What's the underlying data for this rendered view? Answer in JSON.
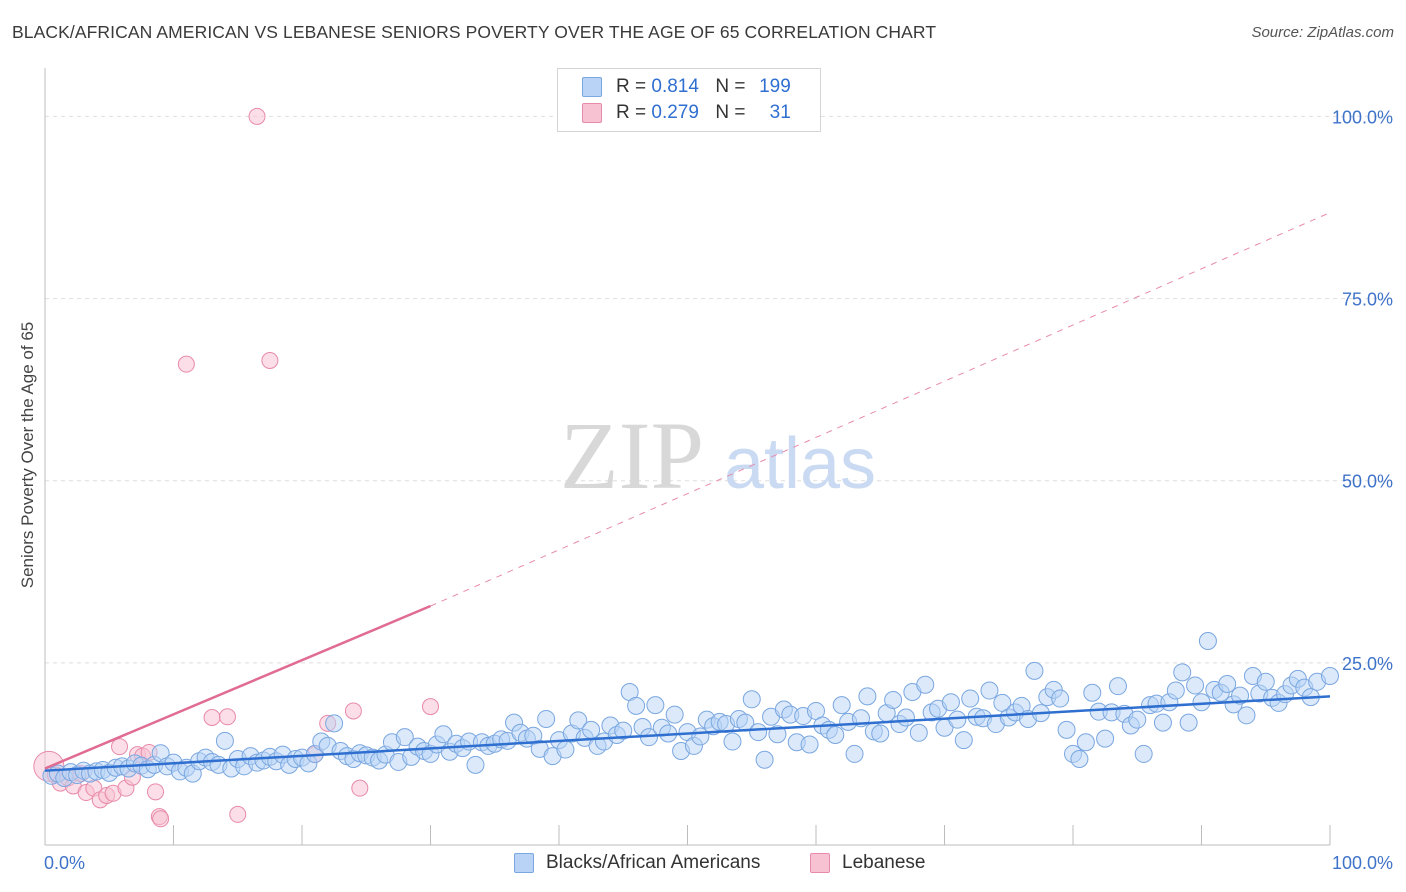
{
  "title": "BLACK/AFRICAN AMERICAN VS LEBANESE SENIORS POVERTY OVER THE AGE OF 65 CORRELATION CHART",
  "source": "Source: ZipAtlas.com",
  "watermark": {
    "zip": "ZIP",
    "atlas": "atlas"
  },
  "legend": {
    "r_label": "R =",
    "n_label": "N =",
    "rows": [
      {
        "r": "0.814",
        "n": "199",
        "color": "#b8d3f5"
      },
      {
        "r": "0.279",
        "n": "31",
        "color": "#f7c3d3"
      }
    ]
  },
  "bottom_legend": {
    "series1": "Blacks/African Americans",
    "series2": "Lebanese"
  },
  "chart_data": {
    "type": "scatter",
    "title": "BLACK/AFRICAN AMERICAN VS LEBANESE SENIORS POVERTY OVER THE AGE OF 65 CORRELATION CHART",
    "xlabel": "",
    "ylabel": "Seniors Poverty Over the Age of 65",
    "xlim": [
      0,
      100
    ],
    "ylim": [
      0,
      105
    ],
    "x_tick_labels": [
      "0.0%",
      "100.0%"
    ],
    "y_ticks": [
      25,
      50,
      75,
      100
    ],
    "y_tick_labels": [
      "25.0%",
      "50.0%",
      "75.0%",
      "100.0%"
    ],
    "series": [
      {
        "name": "Blacks/African Americans",
        "color": "#7aa7e0",
        "fill": "#b8d3f5",
        "trend": {
          "x": [
            0,
            100
          ],
          "y": [
            10.2,
            20.4
          ]
        },
        "points": [
          [
            0.5,
            9.5
          ],
          [
            1,
            9.8
          ],
          [
            1.5,
            9.2
          ],
          [
            2,
            10
          ],
          [
            2.5,
            9.6
          ],
          [
            3,
            10.2
          ],
          [
            3.5,
            9.8
          ],
          [
            4,
            10.1
          ],
          [
            4.5,
            10.3
          ],
          [
            5,
            9.9
          ],
          [
            5.5,
            10.6
          ],
          [
            6,
            10.8
          ],
          [
            6.5,
            10.5
          ],
          [
            7,
            11.2
          ],
          [
            7.5,
            10.9
          ],
          [
            8,
            10.4
          ],
          [
            8.5,
            11
          ],
          [
            9,
            12.6
          ],
          [
            9.5,
            10.8
          ],
          [
            10,
            11.3
          ],
          [
            10.5,
            10.1
          ],
          [
            11,
            10.6
          ],
          [
            11.5,
            9.8
          ],
          [
            12,
            11.5
          ],
          [
            12.5,
            12
          ],
          [
            13,
            11.4
          ],
          [
            13.5,
            11
          ],
          [
            14,
            14.3
          ],
          [
            14.5,
            10.5
          ],
          [
            15,
            11.8
          ],
          [
            15.5,
            10.8
          ],
          [
            16,
            12.2
          ],
          [
            16.5,
            11.3
          ],
          [
            17,
            11.6
          ],
          [
            17.5,
            12.1
          ],
          [
            18,
            11.5
          ],
          [
            18.5,
            12.4
          ],
          [
            19,
            11
          ],
          [
            19.5,
            11.8
          ],
          [
            20,
            12
          ],
          [
            20.5,
            11.2
          ],
          [
            21,
            12.5
          ],
          [
            21.5,
            14.2
          ],
          [
            22,
            13.6
          ],
          [
            22.5,
            16.7
          ],
          [
            23,
            12.9
          ],
          [
            23.5,
            12.2
          ],
          [
            24,
            11.8
          ],
          [
            24.5,
            12.6
          ],
          [
            25,
            12.3
          ],
          [
            25.5,
            12
          ],
          [
            26,
            11.6
          ],
          [
            26.5,
            12.4
          ],
          [
            27,
            14.1
          ],
          [
            27.5,
            11.4
          ],
          [
            28,
            14.8
          ],
          [
            28.5,
            12.1
          ],
          [
            29,
            13.5
          ],
          [
            29.5,
            12.9
          ],
          [
            30,
            12.5
          ],
          [
            30.5,
            13.8
          ],
          [
            31,
            15.2
          ],
          [
            31.5,
            12.8
          ],
          [
            32,
            13.9
          ],
          [
            32.5,
            13.3
          ],
          [
            33,
            14.2
          ],
          [
            33.5,
            11
          ],
          [
            34,
            14.1
          ],
          [
            34.5,
            13.6
          ],
          [
            35,
            13.9
          ],
          [
            35.5,
            14.5
          ],
          [
            36,
            14.3
          ],
          [
            36.5,
            16.8
          ],
          [
            37,
            15.4
          ],
          [
            37.5,
            14.6
          ],
          [
            38,
            15
          ],
          [
            38.5,
            13.2
          ],
          [
            39,
            17.3
          ],
          [
            39.5,
            12.2
          ],
          [
            40,
            14.4
          ],
          [
            40.5,
            13.1
          ],
          [
            41,
            15.3
          ],
          [
            41.5,
            17.1
          ],
          [
            42,
            14.7
          ],
          [
            42.5,
            15.8
          ],
          [
            43,
            13.6
          ],
          [
            43.5,
            14.2
          ],
          [
            44,
            16.4
          ],
          [
            44.5,
            15.1
          ],
          [
            45,
            15.7
          ],
          [
            45.5,
            21
          ],
          [
            46,
            19.1
          ],
          [
            46.5,
            16.2
          ],
          [
            47,
            14.8
          ],
          [
            47.5,
            19.2
          ],
          [
            48,
            16.1
          ],
          [
            48.5,
            15.3
          ],
          [
            49,
            17.9
          ],
          [
            49.5,
            12.9
          ],
          [
            50,
            15.5
          ],
          [
            50.5,
            13.6
          ],
          [
            51,
            14.9
          ],
          [
            51.5,
            17.2
          ],
          [
            52,
            16.3
          ],
          [
            52.5,
            16.9
          ],
          [
            53,
            16.6
          ],
          [
            53.5,
            14.2
          ],
          [
            54,
            17.3
          ],
          [
            54.5,
            16.8
          ],
          [
            55,
            20
          ],
          [
            55.5,
            15.5
          ],
          [
            56,
            11.7
          ],
          [
            56.5,
            17.6
          ],
          [
            57,
            15.2
          ],
          [
            57.5,
            18.6
          ],
          [
            58,
            17.9
          ],
          [
            58.5,
            14.1
          ],
          [
            59,
            17.7
          ],
          [
            59.5,
            13.8
          ],
          [
            60,
            18.4
          ],
          [
            60.5,
            16.4
          ],
          [
            61,
            15.8
          ],
          [
            61.5,
            15.1
          ],
          [
            62,
            19.2
          ],
          [
            62.5,
            16.9
          ],
          [
            63,
            12.5
          ],
          [
            63.5,
            17.4
          ],
          [
            64,
            20.4
          ],
          [
            64.5,
            15.6
          ],
          [
            65,
            15.3
          ],
          [
            65.5,
            18.1
          ],
          [
            66,
            19.9
          ],
          [
            66.5,
            16.6
          ],
          [
            67,
            17.5
          ],
          [
            67.5,
            21
          ],
          [
            68,
            15.4
          ],
          [
            68.5,
            22
          ],
          [
            69,
            18.2
          ],
          [
            69.5,
            18.7
          ],
          [
            70,
            16.1
          ],
          [
            70.5,
            19.6
          ],
          [
            71,
            17.2
          ],
          [
            71.5,
            14.4
          ],
          [
            72,
            20.1
          ],
          [
            72.5,
            17.6
          ],
          [
            73,
            17.4
          ],
          [
            73.5,
            21.2
          ],
          [
            74,
            16.6
          ],
          [
            74.5,
            19.5
          ],
          [
            75,
            17.5
          ],
          [
            75.5,
            18.2
          ],
          [
            76,
            19.1
          ],
          [
            76.5,
            17.3
          ],
          [
            77,
            23.9
          ],
          [
            77.5,
            18.1
          ],
          [
            78,
            20.3
          ],
          [
            78.5,
            21.3
          ],
          [
            79,
            20.1
          ],
          [
            79.5,
            15.8
          ],
          [
            80,
            12.5
          ],
          [
            80.5,
            11.8
          ],
          [
            81,
            14.1
          ],
          [
            81.5,
            20.9
          ],
          [
            82,
            18.3
          ],
          [
            82.5,
            14.6
          ],
          [
            83,
            18.2
          ],
          [
            83.5,
            21.8
          ],
          [
            84,
            18
          ],
          [
            84.5,
            16.4
          ],
          [
            85,
            17.2
          ],
          [
            85.5,
            12.5
          ],
          [
            86,
            19.2
          ],
          [
            86.5,
            19.4
          ],
          [
            87,
            16.8
          ],
          [
            87.5,
            19.6
          ],
          [
            88,
            21.2
          ],
          [
            88.5,
            23.7
          ],
          [
            89,
            16.8
          ],
          [
            89.5,
            21.9
          ],
          [
            90,
            19.6
          ],
          [
            90.5,
            28
          ],
          [
            91,
            21.3
          ],
          [
            91.5,
            20.9
          ],
          [
            92,
            22.1
          ],
          [
            92.5,
            19.3
          ],
          [
            93,
            20.5
          ],
          [
            93.5,
            17.8
          ],
          [
            94,
            23.2
          ],
          [
            94.5,
            20.8
          ],
          [
            95,
            22.4
          ],
          [
            95.5,
            20.2
          ],
          [
            96,
            19.5
          ],
          [
            96.5,
            20.7
          ],
          [
            97,
            21.9
          ],
          [
            97.5,
            22.8
          ],
          [
            98,
            21.6
          ],
          [
            98.5,
            20.3
          ],
          [
            99,
            22.4
          ],
          [
            100,
            23.2
          ]
        ]
      },
      {
        "name": "Lebanese",
        "color": "#e88aa9",
        "fill": "#f7c3d3",
        "trend": {
          "x": [
            0,
            30
          ],
          "y": [
            10.5,
            32.8
          ]
        },
        "trend_dashed": {
          "x": [
            30,
            100
          ],
          "y": [
            32.8,
            86.8
          ]
        },
        "points": [
          [
            0.3,
            10.8
          ],
          [
            0.8,
            9.6
          ],
          [
            1.2,
            8.5
          ],
          [
            1.8,
            9.2
          ],
          [
            2.2,
            8.1
          ],
          [
            2.8,
            9.8
          ],
          [
            3.2,
            7.2
          ],
          [
            3.8,
            7.8
          ],
          [
            4.3,
            6.2
          ],
          [
            4.8,
            6.8
          ],
          [
            5.3,
            7.1
          ],
          [
            5.8,
            13.5
          ],
          [
            6.3,
            7.8
          ],
          [
            6.8,
            9.3
          ],
          [
            7.2,
            12.4
          ],
          [
            7.6,
            12.2
          ],
          [
            8.1,
            12.7
          ],
          [
            8.6,
            7.3
          ],
          [
            8.9,
            3.9
          ],
          [
            9,
            3.6
          ],
          [
            11,
            66
          ],
          [
            13,
            17.5
          ],
          [
            14.2,
            17.6
          ],
          [
            15,
            4.2
          ],
          [
            16.5,
            100
          ],
          [
            17.5,
            66.5
          ],
          [
            21,
            12.4
          ],
          [
            22,
            16.7
          ],
          [
            24,
            18.4
          ],
          [
            24.5,
            7.8
          ],
          [
            30,
            19
          ]
        ]
      }
    ]
  }
}
